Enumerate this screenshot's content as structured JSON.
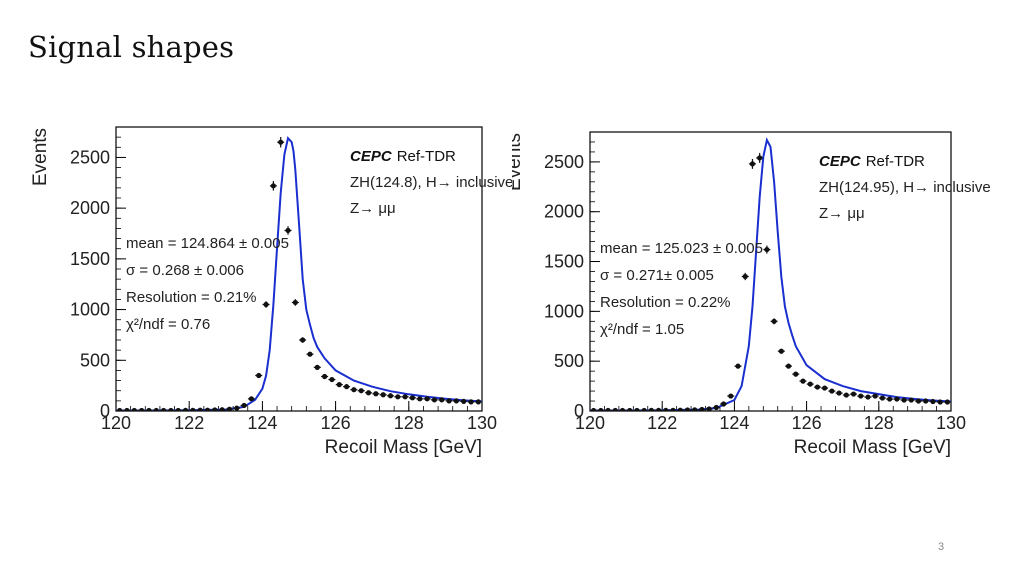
{
  "slide": {
    "title": "Signal shapes",
    "page_number": "3"
  },
  "colors": {
    "fit_line": "#1a2fd0",
    "data_points": "#111111",
    "axis": "#000000"
  },
  "chart_data": [
    {
      "type": "scatter",
      "xlabel": "Recoil Mass [GeV]",
      "ylabel": "Events",
      "xlim": [
        120,
        130
      ],
      "ylim": [
        0,
        2800
      ],
      "xticks": [
        120,
        122,
        124,
        126,
        128,
        130
      ],
      "yticks": [
        0,
        500,
        1000,
        1500,
        2000,
        2500
      ],
      "grid": false,
      "legend": "none",
      "experiment": {
        "name": "CEPC",
        "label": "Ref-TDR"
      },
      "process_line": "ZH(124.8), H→ inclusive",
      "decay_line": "Z→ μμ",
      "fit_results": {
        "mean": "mean = 124.864 ± 0.005",
        "sigma": "σ = 0.268 ± 0.006",
        "resolution": "Resolution = 0.21%",
        "chi2": "χ²/ndf = 0.76"
      },
      "series": [
        {
          "kind": "data",
          "x": [
            120.1,
            120.3,
            120.5,
            120.7,
            120.9,
            121.1,
            121.3,
            121.5,
            121.7,
            121.9,
            122.1,
            122.3,
            122.5,
            122.7,
            122.9,
            123.1,
            123.3,
            123.5,
            123.7,
            123.9,
            124.1,
            124.3,
            124.5,
            124.7,
            124.9,
            125.1,
            125.3,
            125.5,
            125.7,
            125.9,
            126.1,
            126.3,
            126.5,
            126.7,
            126.9,
            127.1,
            127.3,
            127.5,
            127.7,
            127.9,
            128.1,
            128.3,
            128.5,
            128.7,
            128.9,
            129.1,
            129.3,
            129.5,
            129.7,
            129.9
          ],
          "y": [
            5,
            5,
            5,
            5,
            5,
            5,
            5,
            5,
            5,
            6,
            6,
            8,
            8,
            10,
            12,
            18,
            28,
            55,
            120,
            350,
            1050,
            2220,
            2650,
            1780,
            1070,
            700,
            560,
            430,
            340,
            310,
            260,
            240,
            210,
            200,
            180,
            170,
            160,
            150,
            140,
            140,
            130,
            120,
            120,
            110,
            110,
            100,
            100,
            95,
            90,
            90
          ]
        },
        {
          "kind": "fit",
          "x": [
            120,
            121,
            122,
            123,
            123.5,
            123.8,
            124,
            124.1,
            124.2,
            124.3,
            124.4,
            124.5,
            124.6,
            124.7,
            124.8,
            124.85,
            124.9,
            125,
            125.1,
            125.2,
            125.3,
            125.4,
            125.5,
            125.7,
            126,
            126.5,
            127,
            127.5,
            128,
            128.5,
            129,
            129.5,
            130
          ],
          "y": [
            5,
            5,
            7,
            15,
            40,
            110,
            220,
            350,
            600,
            1050,
            1600,
            2150,
            2530,
            2690,
            2650,
            2560,
            2380,
            1850,
            1300,
            1000,
            850,
            720,
            630,
            520,
            400,
            300,
            240,
            195,
            165,
            140,
            120,
            105,
            95
          ]
        }
      ]
    },
    {
      "type": "scatter",
      "xlabel": "Recoil Mass [GeV]",
      "ylabel": "Events",
      "xlim": [
        120,
        130
      ],
      "ylim": [
        0,
        2800
      ],
      "xticks": [
        120,
        122,
        124,
        126,
        128,
        130
      ],
      "yticks": [
        0,
        500,
        1000,
        1500,
        2000,
        2500
      ],
      "grid": false,
      "legend": "none",
      "experiment": {
        "name": "CEPC",
        "label": "Ref-TDR"
      },
      "process_line": "ZH(124.95), H→ inclusive",
      "decay_line": "Z→ μμ",
      "fit_results": {
        "mean": "mean = 125.023 ± 0.005",
        "sigma": "σ = 0.271± 0.005",
        "resolution": "Resolution = 0.22%",
        "chi2": "χ²/ndf = 1.05"
      },
      "series": [
        {
          "kind": "data",
          "x": [
            120.1,
            120.3,
            120.5,
            120.7,
            120.9,
            121.1,
            121.3,
            121.5,
            121.7,
            121.9,
            122.1,
            122.3,
            122.5,
            122.7,
            122.9,
            123.1,
            123.3,
            123.5,
            123.7,
            123.9,
            124.1,
            124.3,
            124.5,
            124.7,
            124.9,
            125.1,
            125.3,
            125.5,
            125.7,
            125.9,
            126.1,
            126.3,
            126.5,
            126.7,
            126.9,
            127.1,
            127.3,
            127.5,
            127.7,
            127.9,
            128.1,
            128.3,
            128.5,
            128.7,
            128.9,
            129.1,
            129.3,
            129.5,
            129.7,
            129.9
          ],
          "y": [
            5,
            5,
            5,
            5,
            5,
            5,
            5,
            5,
            6,
            6,
            6,
            7,
            8,
            10,
            12,
            15,
            20,
            35,
            70,
            150,
            450,
            1350,
            2480,
            2540,
            1620,
            900,
            600,
            450,
            370,
            300,
            270,
            240,
            230,
            200,
            180,
            160,
            170,
            150,
            140,
            150,
            130,
            120,
            120,
            110,
            110,
            100,
            100,
            95,
            90,
            90
          ]
        },
        {
          "kind": "fit",
          "x": [
            120,
            121,
            122,
            123,
            123.5,
            124,
            124.2,
            124.4,
            124.5,
            124.6,
            124.7,
            124.8,
            124.9,
            125,
            125.1,
            125.2,
            125.3,
            125.4,
            125.5,
            125.6,
            125.7,
            126,
            126.5,
            127,
            127.5,
            128,
            128.5,
            129,
            129.5,
            130
          ],
          "y": [
            5,
            5,
            7,
            14,
            30,
            110,
            250,
            650,
            1050,
            1600,
            2150,
            2550,
            2720,
            2650,
            2300,
            1800,
            1350,
            1050,
            880,
            760,
            650,
            460,
            320,
            250,
            200,
            170,
            140,
            120,
            105,
            95
          ]
        }
      ]
    }
  ]
}
